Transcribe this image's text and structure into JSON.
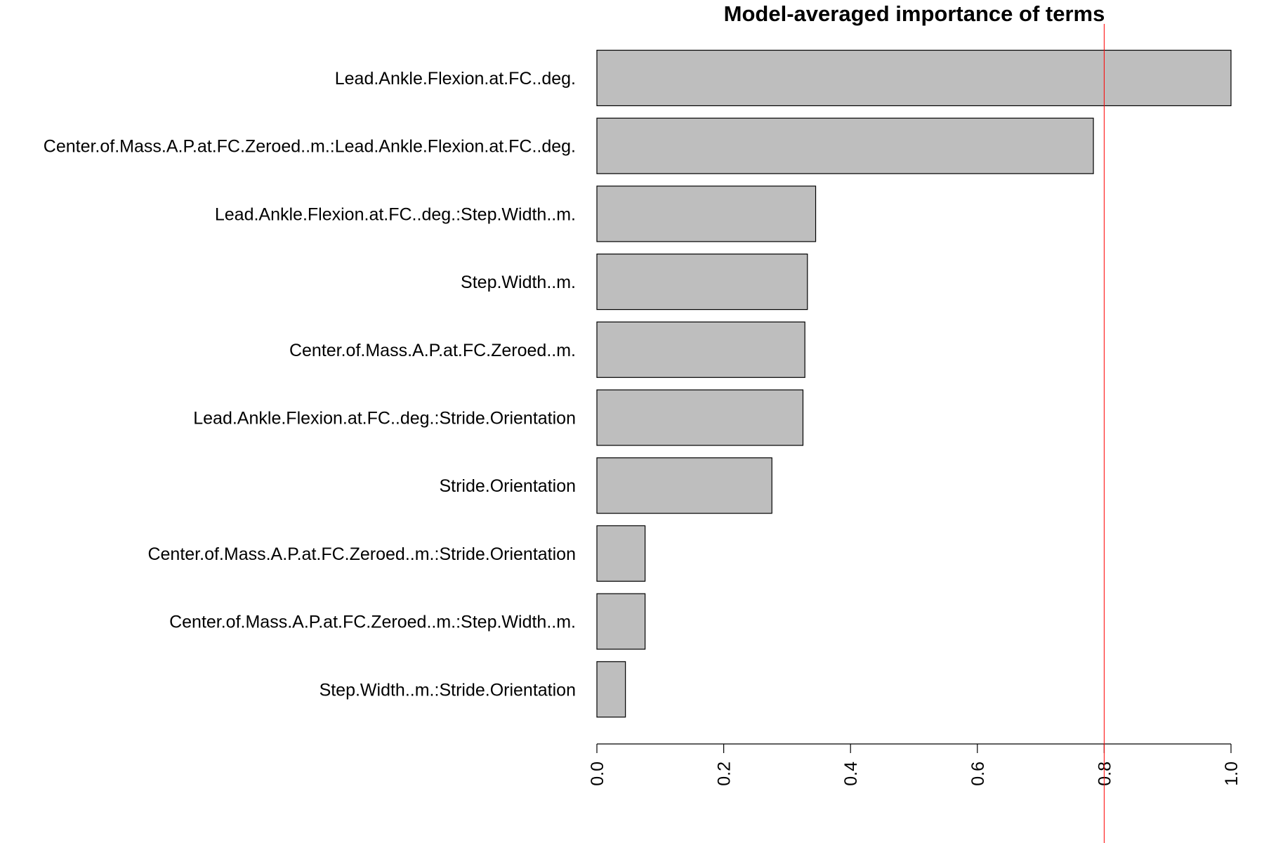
{
  "chart_data": {
    "type": "bar",
    "orientation": "horizontal",
    "title": "Model-averaged importance of terms",
    "xlabel": "",
    "ylabel": "",
    "categories": [
      "Lead.Ankle.Flexion.at.FC..deg.",
      "Center.of.Mass.A.P.at.FC.Zeroed..m.:Lead.Ankle.Flexion.at.FC..deg.",
      "Lead.Ankle.Flexion.at.FC..deg.:Step.Width..m.",
      "Step.Width..m.",
      "Center.of.Mass.A.P.at.FC.Zeroed..m.",
      "Lead.Ankle.Flexion.at.FC..deg.:Stride.Orientation",
      "Stride.Orientation",
      "Center.of.Mass.A.P.at.FC.Zeroed..m.:Stride.Orientation",
      "Center.of.Mass.A.P.at.FC.Zeroed..m.:Step.Width..m.",
      "Step.Width..m.:Stride.Orientation"
    ],
    "values": [
      1.0,
      0.783,
      0.345,
      0.332,
      0.328,
      0.325,
      0.276,
      0.076,
      0.076,
      0.045
    ],
    "xlim": [
      0,
      1
    ],
    "xticks": [
      0,
      0.2,
      0.4,
      0.6,
      0.8,
      1
    ],
    "xtick_labels": [
      "0.0",
      "0.2",
      "0.4",
      "0.6",
      "0.8",
      "1.0"
    ],
    "reference_line": 0.8,
    "grid": false,
    "legend": "none",
    "colors": {
      "bar_fill": "#bebebe",
      "bar_stroke": "#000000",
      "reference_line": "#ff0000",
      "text": "#000000",
      "axis": "#000000",
      "background": "#ffffff"
    }
  }
}
